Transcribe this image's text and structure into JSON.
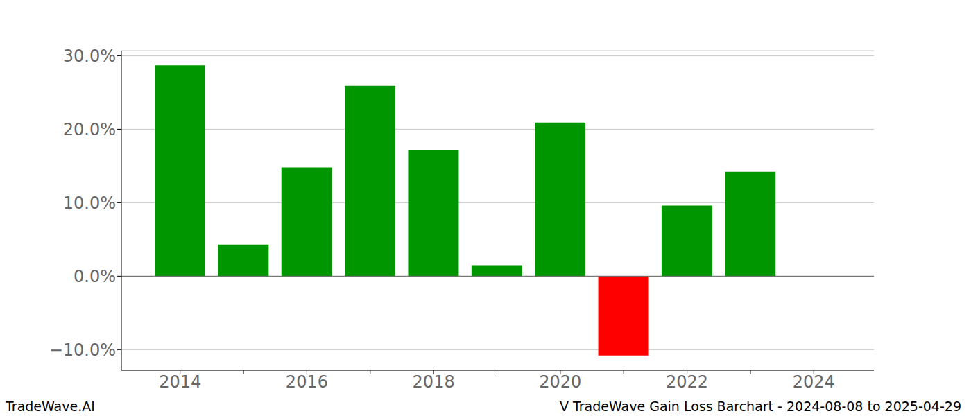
{
  "chart_data": {
    "type": "bar",
    "annotations": [
      "TradeWave.AI",
      "V TradeWave Gain Loss Barchart - 2024-08-08 to 2025-04-29"
    ],
    "categories": [
      "2014",
      null,
      "2016",
      null,
      "2018",
      null,
      "2020",
      null,
      "2022",
      null,
      "2024"
    ],
    "values": [
      28.7,
      4.3,
      14.8,
      25.9,
      17.2,
      1.5,
      20.9,
      -10.8,
      9.6,
      14.2,
      null
    ],
    "colors": [
      "#009600",
      "#009600",
      "#009600",
      "#009600",
      "#009600",
      "#009600",
      "#009600",
      "#ff0000",
      "#009600",
      "#009600"
    ],
    "ylim": [
      -12.8,
      30.7
    ],
    "yticks": [
      {
        "value": -10,
        "label": "−10.0%"
      },
      {
        "value": 0,
        "label": "0.0%"
      },
      {
        "value": 10,
        "label": "10.0%"
      },
      {
        "value": 20,
        "label": "20.0%"
      },
      {
        "value": 30,
        "label": "30.0%"
      }
    ],
    "grid": true
  }
}
